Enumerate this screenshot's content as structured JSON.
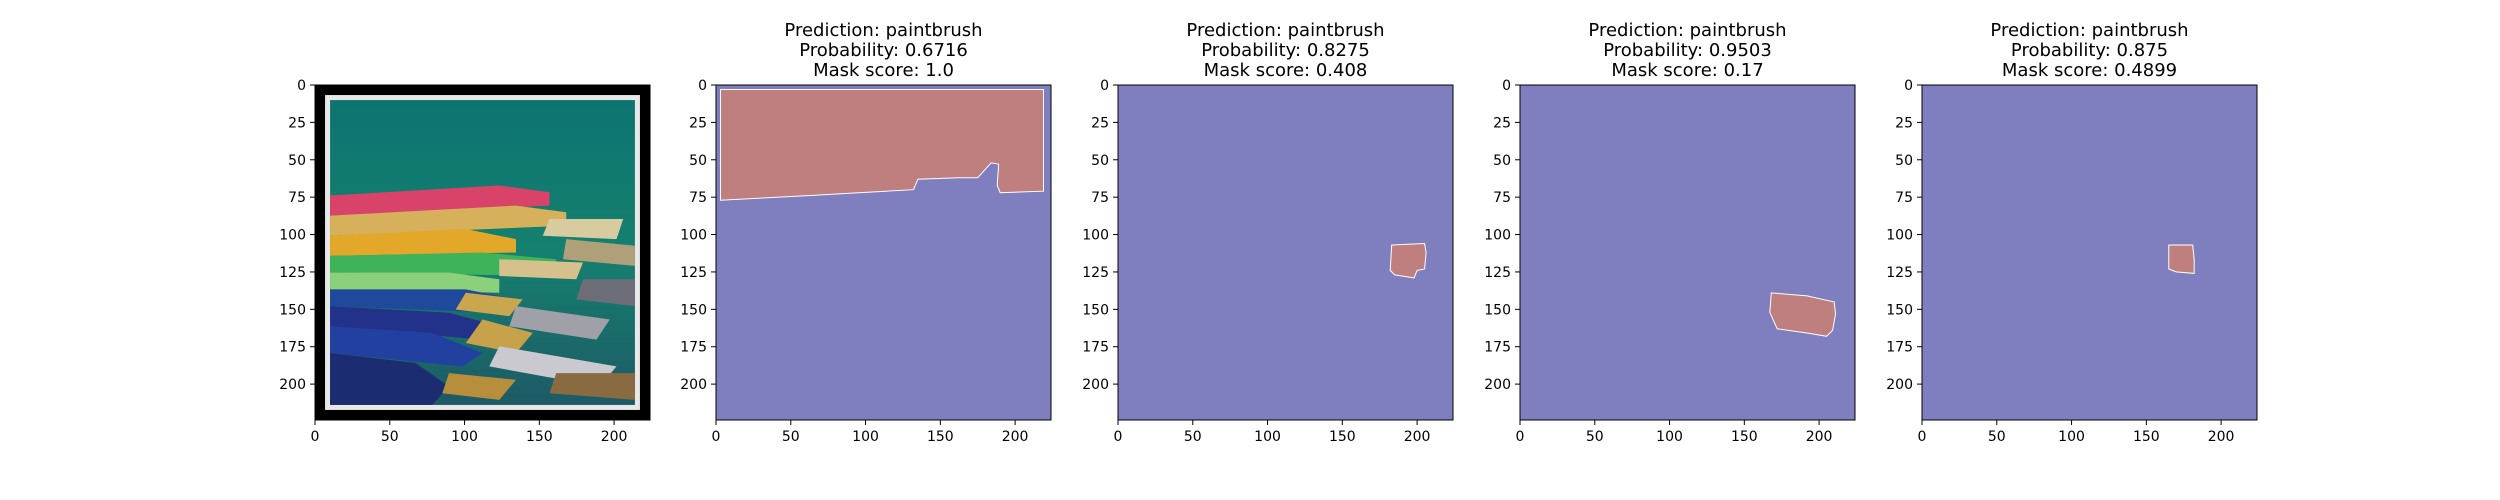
{
  "colors": {
    "mask_background": "#7f7fbf",
    "mask_foreground": "#bf7f7f",
    "axis_frame": "#000000",
    "tick_text": "#000000"
  },
  "chart_data": [
    {
      "type": "image",
      "title": "",
      "content": "photo-of-paintbrushes",
      "xlim": [
        0,
        224
      ],
      "ylim": [
        224,
        0
      ],
      "xticks": [
        0,
        50,
        100,
        150,
        200
      ],
      "yticks": [
        0,
        25,
        50,
        75,
        100,
        125,
        150,
        175,
        200
      ]
    },
    {
      "type": "heatmap",
      "title_lines": [
        "Prediction: paintbrush",
        "Probability: 0.6716",
        "Mask score: 1.0"
      ],
      "prediction": "paintbrush",
      "probability": 0.6716,
      "mask_score": 1.0,
      "xlim": [
        0,
        224
      ],
      "ylim": [
        224,
        0
      ],
      "xticks": [
        0,
        50,
        100,
        150,
        200
      ],
      "yticks": [
        0,
        25,
        50,
        75,
        100,
        125,
        150,
        175,
        200
      ],
      "mask_region": [
        [
          3,
          3
        ],
        [
          219,
          3
        ],
        [
          219,
          71
        ],
        [
          190,
          72
        ],
        [
          188,
          67
        ],
        [
          189,
          53
        ],
        [
          184,
          52
        ],
        [
          175,
          62
        ],
        [
          162,
          62
        ],
        [
          135,
          63
        ],
        [
          132,
          70
        ],
        [
          60,
          74
        ],
        [
          3,
          77
        ]
      ]
    },
    {
      "type": "heatmap",
      "title_lines": [
        "Prediction: paintbrush",
        "Probability: 0.8275",
        "Mask score: 0.408"
      ],
      "prediction": "paintbrush",
      "probability": 0.8275,
      "mask_score": 0.408,
      "xlim": [
        0,
        224
      ],
      "ylim": [
        224,
        0
      ],
      "xticks": [
        0,
        50,
        100,
        150,
        200
      ],
      "yticks": [
        0,
        25,
        50,
        75,
        100,
        125,
        150,
        175,
        200
      ],
      "mask_region": [
        [
          183,
          107
        ],
        [
          205,
          106
        ],
        [
          206,
          112
        ],
        [
          205,
          123
        ],
        [
          200,
          124
        ],
        [
          198,
          129
        ],
        [
          185,
          127
        ],
        [
          182,
          124
        ]
      ]
    },
    {
      "type": "heatmap",
      "title_lines": [
        "Prediction: paintbrush",
        "Probability: 0.9503",
        "Mask score: 0.17"
      ],
      "prediction": "paintbrush",
      "probability": 0.9503,
      "mask_score": 0.17,
      "xlim": [
        0,
        224
      ],
      "ylim": [
        224,
        0
      ],
      "xticks": [
        0,
        50,
        100,
        150,
        200
      ],
      "yticks": [
        0,
        25,
        50,
        75,
        100,
        125,
        150,
        175,
        200
      ],
      "mask_region": [
        [
          168,
          139
        ],
        [
          192,
          141
        ],
        [
          210,
          145
        ],
        [
          211,
          153
        ],
        [
          209,
          164
        ],
        [
          205,
          168
        ],
        [
          193,
          166
        ],
        [
          172,
          163
        ],
        [
          167,
          152
        ]
      ]
    },
    {
      "type": "heatmap",
      "title_lines": [
        "Prediction: paintbrush",
        "Probability: 0.875",
        "Mask score: 0.4899"
      ],
      "prediction": "paintbrush",
      "probability": 0.875,
      "mask_score": 0.4899,
      "xlim": [
        0,
        224
      ],
      "ylim": [
        224,
        0
      ],
      "xticks": [
        0,
        50,
        100,
        150,
        200
      ],
      "yticks": [
        0,
        25,
        50,
        75,
        100,
        125,
        150,
        175,
        200
      ],
      "mask_region": [
        [
          165,
          107
        ],
        [
          181,
          107
        ],
        [
          182,
          117
        ],
        [
          182,
          126
        ],
        [
          170,
          125
        ],
        [
          165,
          123
        ],
        [
          165,
          112
        ]
      ]
    }
  ]
}
